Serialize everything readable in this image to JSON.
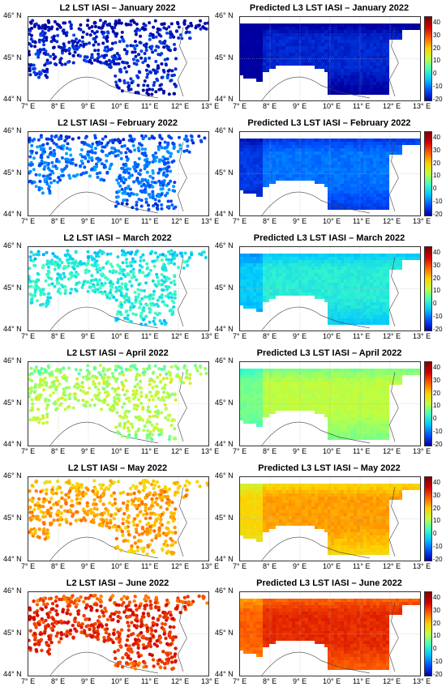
{
  "rows": [
    {
      "month": "January 2022",
      "left_title": "L2 LST IASI – January 2022",
      "right_title": "Predicted L3 LST IASI – January 2022",
      "level": 0.06
    },
    {
      "month": "February 2022",
      "left_title": "L2 LST IASI – February 2022",
      "right_title": "Predicted L3 LST IASI – February 2022",
      "level": 0.16
    },
    {
      "month": "March 2022",
      "left_title": "L2 LST IASI – March 2022",
      "right_title": "Predicted L3 LST IASI – March 2022",
      "level": 0.33
    },
    {
      "month": "April 2022",
      "left_title": "L2 LST IASI – April 2022",
      "right_title": "Predicted L3 LST IASI – April 2022",
      "level": 0.5
    },
    {
      "month": "May 2022",
      "left_title": "L2 LST IASI – May 2022",
      "right_title": "Predicted L3 LST IASI – May 2022",
      "level": 0.68
    },
    {
      "month": "June 2022",
      "left_title": "L2 LST IASI – June 2022",
      "right_title": "Predicted L3 LST IASI – June 2022",
      "level": 0.82
    }
  ],
  "lat_labels": [
    "46° N",
    "45° N",
    "44° N"
  ],
  "lon_labels": [
    "7° E",
    "8° E",
    "9° E",
    "10° E",
    "11° E",
    "12° E",
    "13° E"
  ],
  "colorbar": {
    "ticks": [
      "40",
      "30",
      "20",
      "10",
      "0",
      "-10",
      "-20"
    ],
    "min": -20,
    "max": 45,
    "colors": [
      "#0000a0",
      "#0050ff",
      "#00c8ff",
      "#40ffc0",
      "#c0ff40",
      "#ffd000",
      "#ff6000",
      "#d00000",
      "#800000"
    ]
  }
}
